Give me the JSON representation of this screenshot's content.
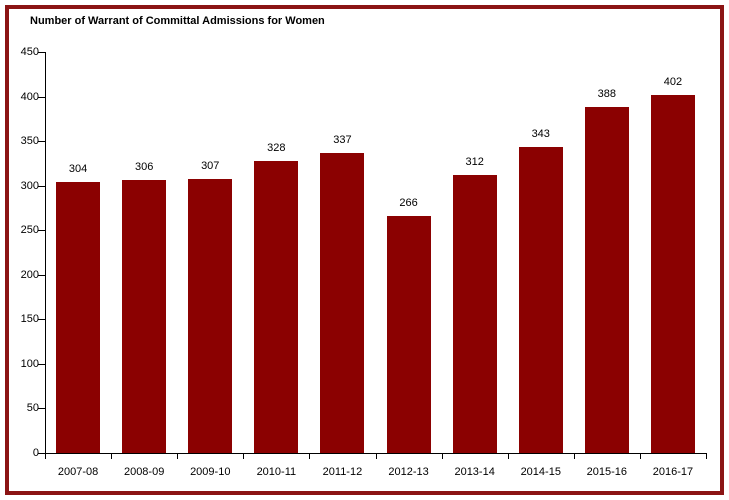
{
  "chart_data": {
    "type": "bar",
    "title": "Number of Warrant of Committal Admissions for Women",
    "categories": [
      "2007-08",
      "2008-09",
      "2009-10",
      "2010-11",
      "2011-12",
      "2012-13",
      "2013-14",
      "2014-15",
      "2015-16",
      "2016-17"
    ],
    "values": [
      304,
      306,
      307,
      328,
      337,
      266,
      312,
      343,
      388,
      402
    ],
    "xlabel": "",
    "ylabel": "",
    "ylim": [
      0,
      450
    ],
    "ytick_step": 50,
    "grid": false,
    "legend": "none",
    "bar_color": "#8B0101",
    "frame_border_color": "#8B1414",
    "axis_color": "#000000",
    "text_color": "#000000",
    "background_color": "#FFFFFF"
  }
}
